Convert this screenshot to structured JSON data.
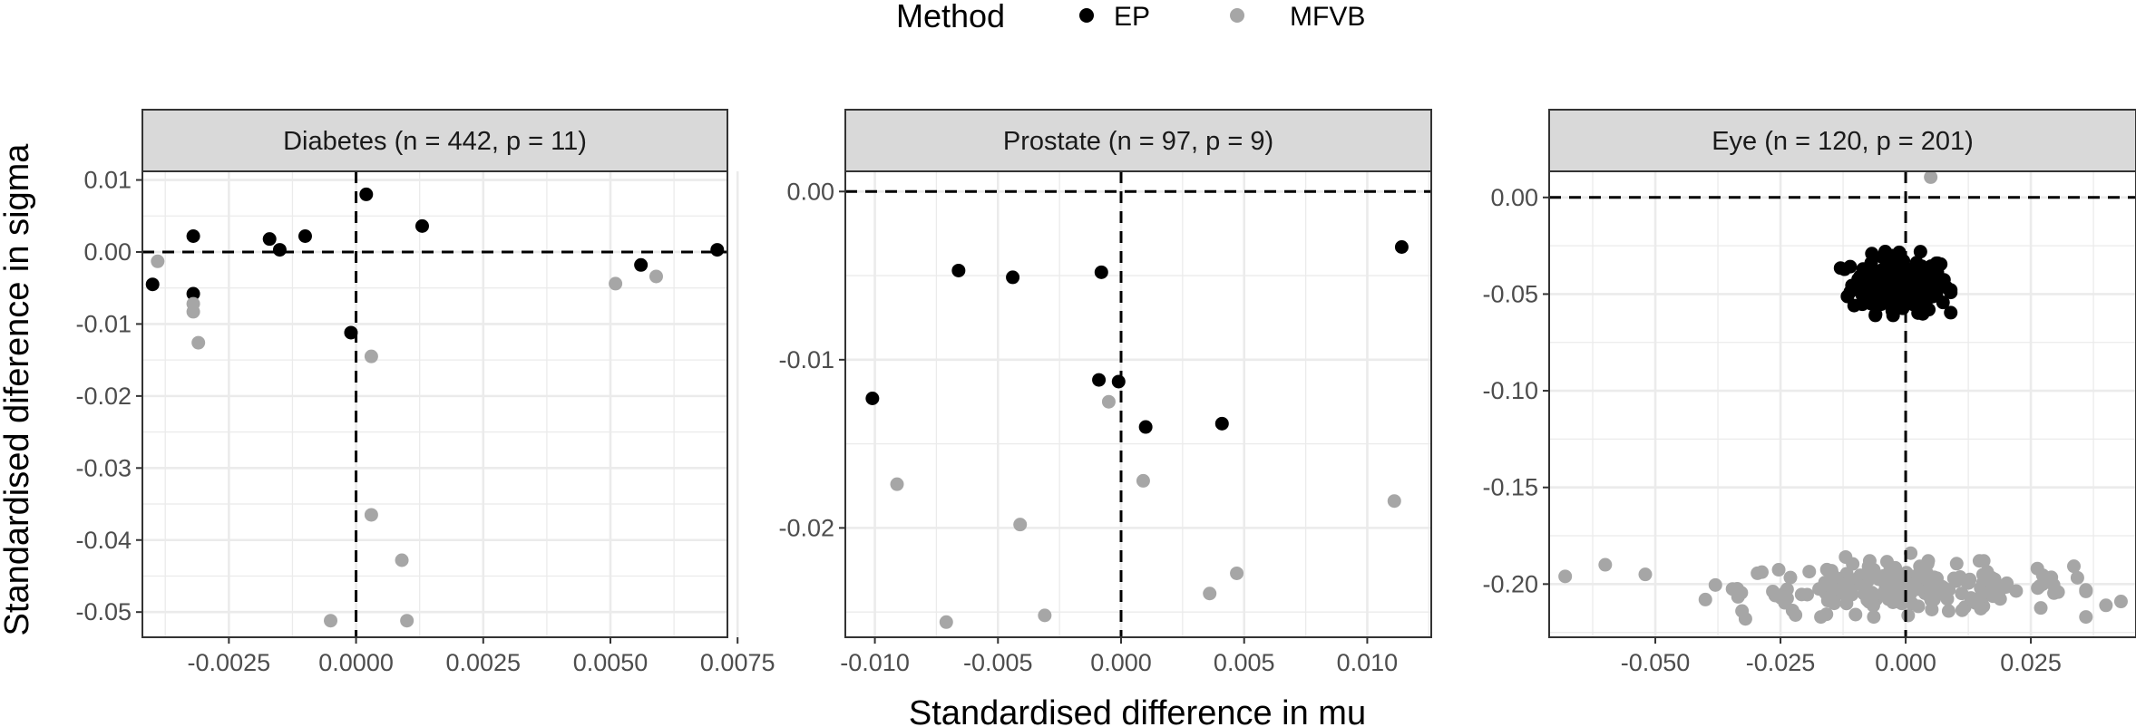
{
  "chart_data": {
    "type": "scatter",
    "xlabel": "Standardised difference in mu",
    "ylabel": "Standardised diference in sigma",
    "legend": {
      "title": "Method",
      "position": "top",
      "entries": [
        {
          "name": "EP",
          "color": "#000000"
        },
        {
          "name": "MFVB",
          "color": "#a6a6a6"
        }
      ]
    },
    "colors": {
      "EP": "#000000",
      "MFVB": "#a6a6a6",
      "panel_border": "#333333",
      "strip_fill": "#d9d9d9",
      "grid": "#ebebeb"
    },
    "grid": true,
    "reference_lines": {
      "x": 0,
      "y": 0,
      "style": "dashed"
    },
    "panels": [
      {
        "title": "Diabetes (n = 442, p = 11)",
        "xlim": [
          -0.0042,
          0.0073
        ],
        "ylim": [
          -0.0535,
          0.0112
        ],
        "xticks": [
          -0.0025,
          0,
          0.0025,
          0.005,
          0.0075
        ],
        "xtick_labels": [
          "-0.0025",
          "0.0000",
          "0.0025",
          "0.0050",
          "0.0075"
        ],
        "yticks": [
          0.01,
          0,
          -0.01,
          -0.02,
          -0.03,
          -0.04,
          -0.05
        ],
        "ytick_labels": [
          "0.01",
          "0.00",
          "-0.01",
          "-0.02",
          "-0.03",
          "-0.04",
          "-0.05"
        ],
        "series": [
          {
            "name": "EP",
            "points": [
              [
                -0.004,
                -0.0045
              ],
              [
                -0.0032,
                0.0022
              ],
              [
                -0.0032,
                -0.0058
              ],
              [
                -0.0017,
                0.0018
              ],
              [
                -0.0015,
                0.0003
              ],
              [
                -0.001,
                0.0022
              ],
              [
                -0.0001,
                -0.0112
              ],
              [
                0.0002,
                0.008
              ],
              [
                0.0013,
                0.0036
              ],
              [
                0.0056,
                -0.0018
              ],
              [
                0.0071,
                0.0003
              ]
            ]
          },
          {
            "name": "MFVB",
            "points": [
              [
                -0.0039,
                -0.0013
              ],
              [
                -0.0032,
                -0.0072
              ],
              [
                -0.0032,
                -0.0083
              ],
              [
                -0.0031,
                -0.0126
              ],
              [
                -0.0005,
                -0.0512
              ],
              [
                0.0003,
                -0.0145
              ],
              [
                0.0003,
                -0.0365
              ],
              [
                0.0009,
                -0.0428
              ],
              [
                0.001,
                -0.0512
              ],
              [
                0.0051,
                -0.0044
              ],
              [
                0.0059,
                -0.0034
              ]
            ]
          }
        ]
      },
      {
        "title": "Prostate (n = 97, p = 9)",
        "xlim": [
          -0.0112,
          0.0126
        ],
        "ylim": [
          -0.0265,
          0.0012
        ],
        "xticks": [
          -0.01,
          -0.005,
          0,
          0.005,
          0.01
        ],
        "xtick_labels": [
          "-0.010",
          "-0.005",
          "0.000",
          "0.005",
          "0.010"
        ],
        "yticks": [
          0,
          -0.01,
          -0.02
        ],
        "ytick_labels": [
          "0.00",
          "-0.01",
          "-0.02"
        ],
        "series": [
          {
            "name": "EP",
            "points": [
              [
                -0.0101,
                -0.0123
              ],
              [
                -0.0066,
                -0.0047
              ],
              [
                -0.0044,
                -0.0051
              ],
              [
                -0.0009,
                -0.0112
              ],
              [
                -0.0008,
                -0.0048
              ],
              [
                -0.0001,
                -0.0113
              ],
              [
                0.001,
                -0.014
              ],
              [
                0.0041,
                -0.0138
              ],
              [
                0.0114,
                -0.0033
              ]
            ]
          },
          {
            "name": "MFVB",
            "points": [
              [
                -0.0091,
                -0.0174
              ],
              [
                -0.0071,
                -0.0256
              ],
              [
                -0.0041,
                -0.0198
              ],
              [
                -0.0031,
                -0.0252
              ],
              [
                -0.0005,
                -0.0125
              ],
              [
                0.0009,
                -0.0172
              ],
              [
                0.0036,
                -0.0239
              ],
              [
                0.0047,
                -0.0227
              ],
              [
                0.0111,
                -0.0184
              ]
            ]
          }
        ]
      },
      {
        "title": "Eye (n = 120, p = 201)",
        "xlim": [
          -0.0712,
          0.046
        ],
        "ylim": [
          -0.2275,
          0.0135
        ],
        "xticks": [
          -0.05,
          -0.025,
          0,
          0.025
        ],
        "xtick_labels": [
          "-0.050",
          "-0.025",
          "0.000",
          "0.025"
        ],
        "yticks": [
          0,
          -0.05,
          -0.1,
          -0.15,
          -0.2
        ],
        "ytick_labels": [
          "0.00",
          "-0.05",
          "-0.10",
          "-0.15",
          "-0.20"
        ],
        "series": [
          {
            "name": "EP",
            "cluster": {
              "n": 201,
              "x_range": [
                -0.013,
                0.009
              ],
              "y_range": [
                -0.061,
                -0.028
              ],
              "x_center": -0.001,
              "y_center": -0.045
            }
          },
          {
            "name": "MFVB",
            "points": [
              [
                0.005,
                0.0105
              ],
              [
                -0.068,
                -0.196
              ],
              [
                -0.06,
                -0.19
              ],
              [
                -0.052,
                -0.195
              ],
              [
                -0.04,
                -0.208
              ],
              [
                0.04,
                -0.211
              ],
              [
                0.043,
                -0.209
              ],
              [
                0.036,
                -0.203
              ],
              [
                -0.012,
                -0.186
              ],
              [
                0.001,
                -0.184
              ],
              [
                -0.032,
                -0.218
              ],
              [
                -0.022,
                -0.216
              ]
            ],
            "cluster": {
              "n": 189,
              "x_range": [
                -0.038,
                0.036
              ],
              "y_range": [
                -0.217,
                -0.188
              ],
              "x_center": 0.0,
              "y_center": -0.202
            }
          }
        ]
      }
    ]
  }
}
